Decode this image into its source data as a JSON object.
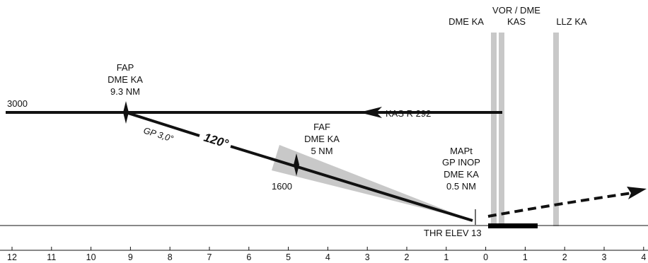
{
  "colors": {
    "ink": "#111111",
    "facility_bar": "#c8c8c8",
    "approach_cone": "#c8c8c8",
    "runway": "#000000",
    "background": "#ffffff"
  },
  "facilities": [
    {
      "id": "dme",
      "label_lines": [
        "DME KA"
      ],
      "distance": 0.2
    },
    {
      "id": "vor",
      "label_lines": [
        "VOR / DME",
        "KAS"
      ],
      "distance": 0.35
    },
    {
      "id": "llz",
      "label_lines": [
        "LLZ KA"
      ],
      "distance": 1.8
    }
  ],
  "fixes": {
    "fap": {
      "label_lines": [
        "FAP",
        "DME KA",
        "9.3 NM"
      ],
      "distance": 9.1,
      "altitude_ft": 3000
    },
    "faf": {
      "label_lines": [
        "FAF",
        "DME KA",
        "5 NM"
      ],
      "distance": 4.8
    },
    "mapt": {
      "label_lines": [
        "MAPt",
        "GP INOP",
        "DME KA",
        "0.5 NM"
      ],
      "distance": 0.3
    }
  },
  "labels": {
    "altitude_3000": "3000",
    "altitude_1600": "1600",
    "radial": "KAS R 292",
    "glidepath": "GP 3,0°",
    "course": "120°",
    "threshold": "THR ELEV 13"
  },
  "profile": {
    "level_segment": {
      "from_distance": 12,
      "to_distance": 0.35,
      "altitude_ft": 3000
    },
    "descent_gradient_deg": 3.0,
    "runway_from_distance": 0.0,
    "runway_to_distance": 1.3
  },
  "scale_ticks": [
    "12",
    "11",
    "10",
    "9",
    "8",
    "7",
    "6",
    "5",
    "4",
    "3",
    "2",
    "1",
    "0",
    "1",
    "2",
    "3",
    "4"
  ],
  "scale_values": [
    12,
    11,
    10,
    9,
    8,
    7,
    6,
    5,
    4,
    3,
    2,
    1,
    0,
    -1,
    -2,
    -3,
    -4
  ]
}
